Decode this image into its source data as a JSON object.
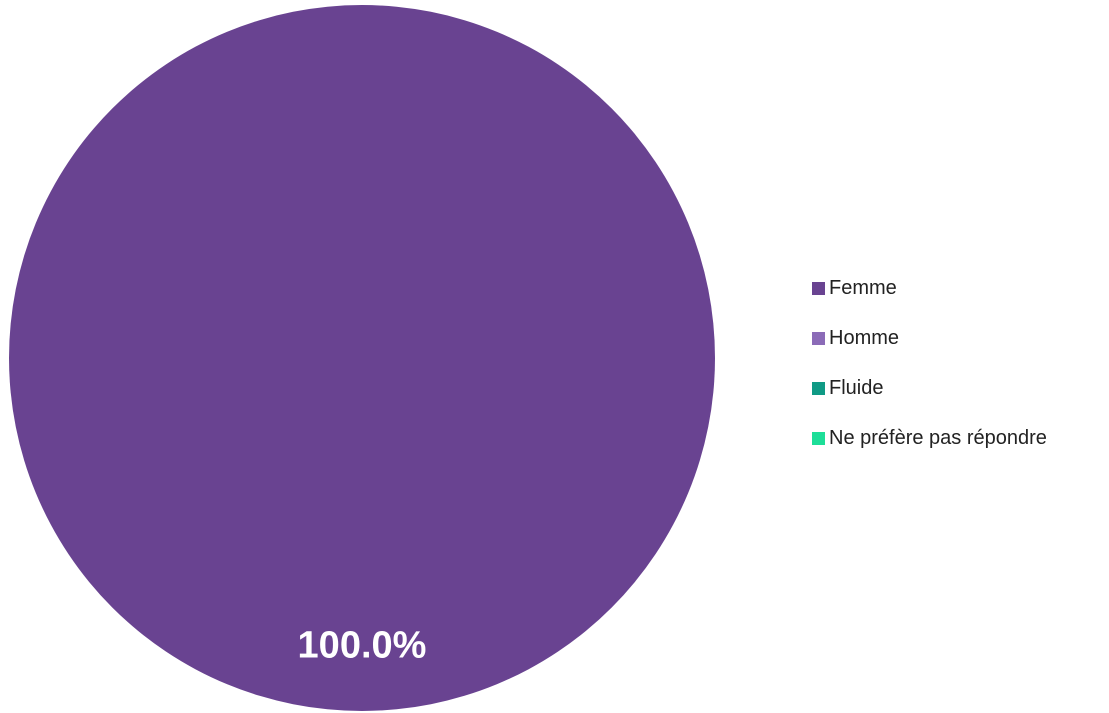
{
  "chart_data": {
    "type": "pie",
    "categories": [
      "Femme",
      "Homme",
      "Fluide",
      "Ne préfère pas répondre"
    ],
    "values": [
      100.0,
      0.0,
      0.0,
      0.0
    ],
    "slice_labels": [
      "100.0%"
    ],
    "colors": [
      "#694391",
      "#8b6bb7",
      "#0f9a85",
      "#1dde98"
    ],
    "legend_position": "right",
    "title": ""
  }
}
